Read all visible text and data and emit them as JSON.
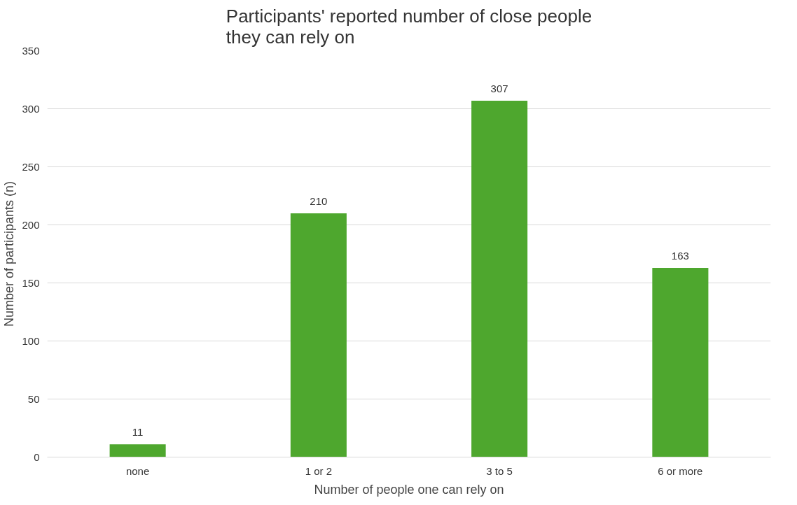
{
  "chart_data": {
    "type": "bar",
    "title": "Participants' reported number of close people they can rely on",
    "xlabel": "Number of people one can rely on",
    "ylabel": "Number of participants (n)",
    "categories": [
      "none",
      "1 or 2",
      "3 to 5",
      "6 or more"
    ],
    "values": [
      11,
      210,
      307,
      163
    ],
    "color": "#4ea72e",
    "ylim": [
      0,
      350
    ],
    "yticks": [
      0,
      50,
      100,
      150,
      200,
      250,
      300,
      350
    ],
    "grid": "y",
    "data_labels": true
  }
}
